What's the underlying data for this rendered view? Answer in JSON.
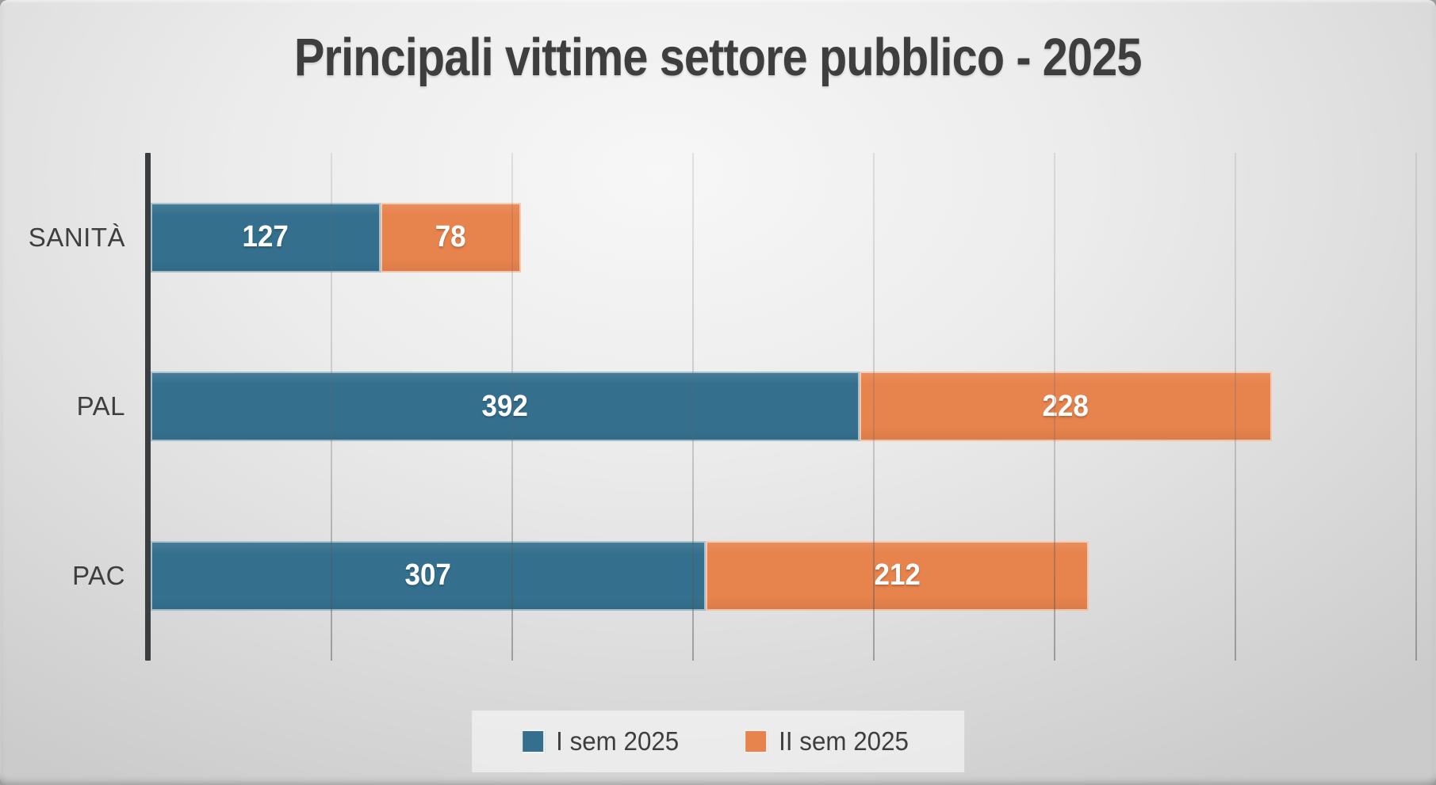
{
  "title": "Principali vittime settore pubblico - 2025",
  "chart_data": {
    "type": "bar",
    "orientation": "horizontal",
    "stacked": true,
    "title": "Principali vittime settore pubblico - 2025",
    "categories": [
      "SANITÀ",
      "PAL",
      "PAC"
    ],
    "series": [
      {
        "name": "I sem 2025",
        "color": "#34708E",
        "values": [
          127,
          392,
          307
        ]
      },
      {
        "name": "II sem 2025",
        "color": "#E7834D",
        "values": [
          78,
          228,
          212
        ]
      }
    ],
    "totals": [
      205,
      620,
      519
    ],
    "xlim": [
      0,
      700
    ],
    "grid_interval": 100,
    "grid": true,
    "x_tick_labels_visible": false,
    "legend_position": "bottom",
    "value_labels": "inside-center",
    "value_label_color": "#FFFFFF"
  },
  "colors": {
    "axis": "#3A3E40",
    "text": "#3E3E3E",
    "background_center": "#F5F5F5",
    "background_edge": "#CBCBCB",
    "legend_panel": "#EDEDED"
  }
}
